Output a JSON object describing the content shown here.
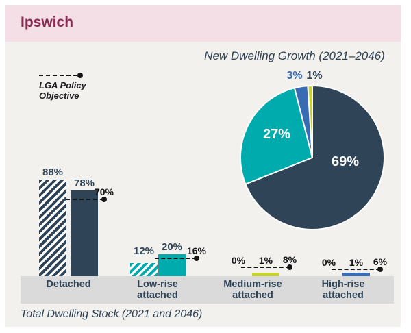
{
  "header": {
    "title": "Ipswich"
  },
  "legend": {
    "line1": "LGA Policy",
    "line2": "Objective"
  },
  "colors": {
    "band_pink": "#f4dfe7",
    "header_maroon": "#8e2a50",
    "content_bg": "#f2f1ee",
    "navy": "#2f4557",
    "teal": "#00abae",
    "blue": "#3a6cb3",
    "yellow": "#c9d330",
    "axis_strip_gray": "#dadada",
    "line_black": "#141414"
  },
  "chart_data": [
    {
      "type": "bar",
      "title": "Total Dwelling Stock (2021 and 2046)",
      "unit": "%",
      "categories": [
        "Detached",
        "Low-rise attached",
        "Medium-rise attached",
        "High-rise attached"
      ],
      "category_colors": [
        "#2f4557",
        "#00abae",
        "#c9d330",
        "#3a6cb3"
      ],
      "series": [
        {
          "name": "2021",
          "style": "hatched",
          "values": [
            88,
            12,
            0,
            0
          ]
        },
        {
          "name": "2046",
          "style": "solid",
          "values": [
            78,
            20,
            1,
            1
          ]
        }
      ],
      "policy_line": {
        "name": "LGA Policy Objective",
        "values": [
          70,
          16,
          8,
          6
        ]
      },
      "ylim": [
        0,
        100
      ],
      "grid": false,
      "legend_position": "top-left"
    },
    {
      "type": "pie",
      "title": "New Dwelling Growth (2021–2046)",
      "unit": "%",
      "direction": "clockwise",
      "start_angle_deg": 0,
      "slices": [
        {
          "label": "Detached",
          "value": 69,
          "color": "#2f4557"
        },
        {
          "label": "Low-rise attached",
          "value": 27,
          "color": "#00abae"
        },
        {
          "label": "High-rise attached",
          "value": 3,
          "color": "#3a6cb3"
        },
        {
          "label": "Medium-rise attached",
          "value": 1,
          "color": "#c9d330"
        }
      ]
    }
  ]
}
